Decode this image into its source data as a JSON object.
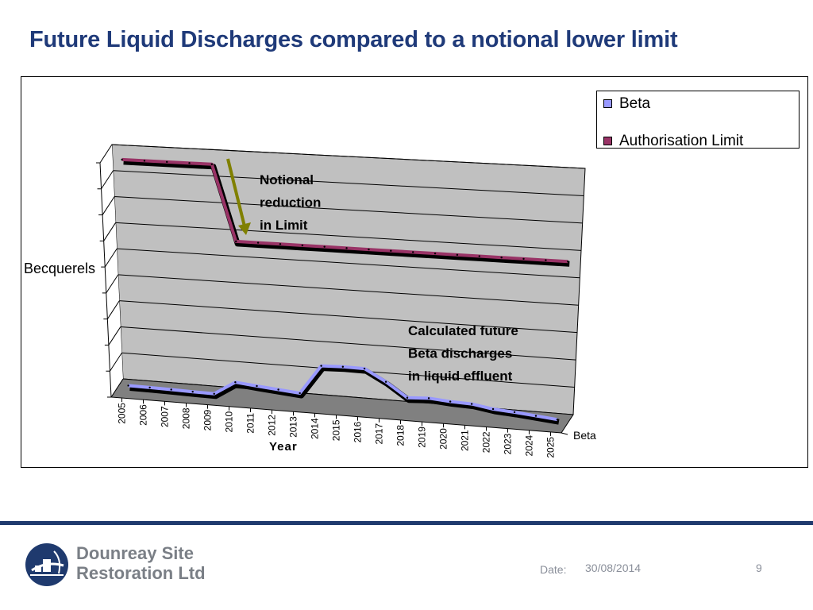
{
  "slide": {
    "title": "Future Liquid Discharges compared to a notional lower limit",
    "date_label": "Date:",
    "date_value": "30/08/2014",
    "page_number": "9",
    "logo_line1": "Dounreay Site",
    "logo_line2": "Restoration Ltd"
  },
  "chart_data": {
    "type": "line",
    "style": "3d",
    "x": [
      "2005",
      "2006",
      "2007",
      "2008",
      "2009",
      "2010",
      "2011",
      "2012",
      "2013",
      "2014",
      "2015",
      "2016",
      "2017",
      "2018",
      "2019",
      "2020",
      "2021",
      "2022",
      "2023",
      "2024",
      "2025"
    ],
    "series": [
      {
        "name": "Beta",
        "color": "#9999ff",
        "values": [
          1.0,
          0.9,
          0.75,
          0.55,
          0.4,
          6.0,
          5.1,
          4.3,
          3.5,
          15.6,
          15.9,
          15.8,
          11.0,
          5.1,
          5.6,
          4.9,
          4.6,
          3.2,
          2.6,
          1.8,
          1.0
        ]
      },
      {
        "name": "Authorisation Limit",
        "color": "#993366",
        "values": [
          95,
          95,
          95,
          95,
          95,
          63,
          63,
          63,
          63,
          63,
          63,
          63,
          63,
          63,
          63,
          63,
          63,
          63,
          63,
          63,
          63
        ]
      }
    ],
    "ylabel": "Becquerels",
    "xlabel": "Year",
    "depth_axis_label": "Beta",
    "ylim": [
      0,
      100
    ],
    "y_ticks": 9,
    "grid": true,
    "legend": "top-right",
    "annotations": [
      {
        "text_lines": [
          "Notional",
          "reduction",
          "in Limit"
        ],
        "style": "bold",
        "arrow": true,
        "arrow_color": "#808000"
      },
      {
        "text_lines": [
          "Calculated future",
          "Beta discharges",
          "in liquid effluent"
        ],
        "style": "bold"
      }
    ],
    "wall_color": "#c0c0c0",
    "floor_color": "#808080"
  }
}
